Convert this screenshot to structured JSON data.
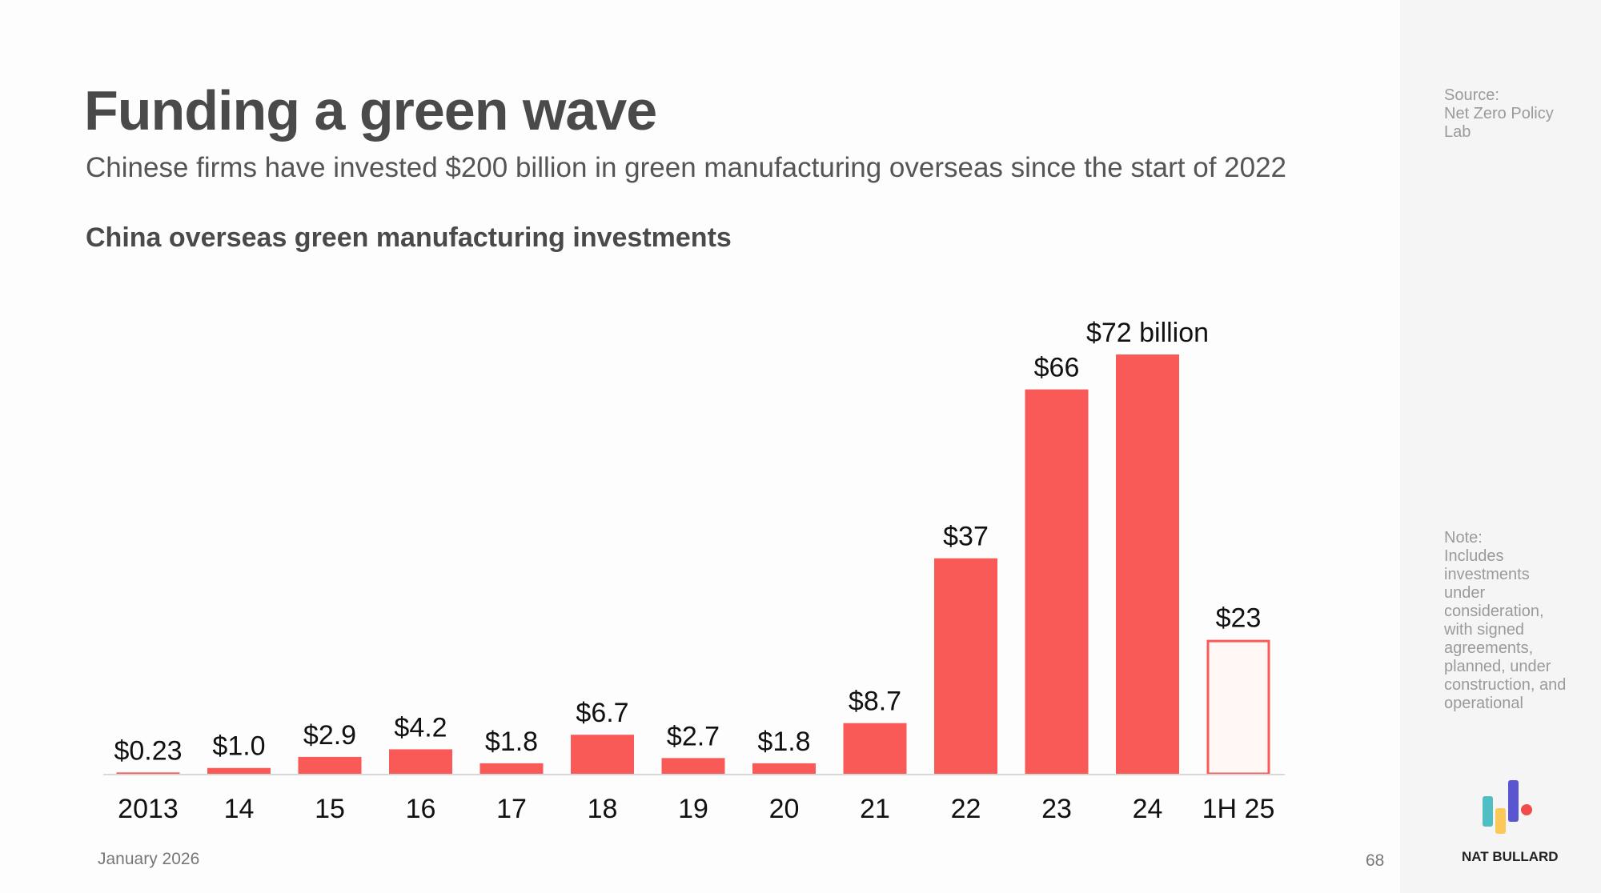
{
  "header": {
    "title": "Funding a green wave",
    "subtitle": "Chinese firms have invested $200 billion in green manufacturing overseas since the start of 2022"
  },
  "chart_data": {
    "type": "bar",
    "title": "China overseas green manufacturing investments",
    "xlabel": "",
    "ylabel": "",
    "categories": [
      "2013",
      "14",
      "15",
      "16",
      "17",
      "18",
      "19",
      "20",
      "21",
      "22",
      "23",
      "24",
      "1H 25"
    ],
    "values": [
      0.23,
      1.0,
      2.9,
      4.2,
      1.8,
      6.7,
      2.7,
      1.8,
      8.7,
      37,
      66,
      72,
      23
    ],
    "data_labels": [
      "$0.23",
      "$1.0",
      "$2.9",
      "$4.2",
      "$1.8",
      "$6.7",
      "$2.7",
      "$1.8",
      "$8.7",
      "$37",
      "$66",
      "$72 billion",
      "$23"
    ],
    "partial_year": "1H 25",
    "ylim": [
      0,
      72
    ],
    "grid": false,
    "colors": {
      "bar": "#f95a57",
      "partial_fill": "#fff8f4",
      "partial_stroke": "#f95a57",
      "axis": "#d8d8d8"
    }
  },
  "footer": {
    "date": "January 2026",
    "page": "68"
  },
  "sidebar": {
    "source_label": "Source:",
    "source": "Net Zero Policy Lab",
    "note_label": "Note:",
    "note": "Includes investments under consideration, with signed agreements, planned, under construction, and operational",
    "brand": "NAT BULLARD",
    "logo_colors": [
      "#4fbfc4",
      "#fcc85a",
      "#5a56d2",
      "#f24b4b"
    ]
  }
}
